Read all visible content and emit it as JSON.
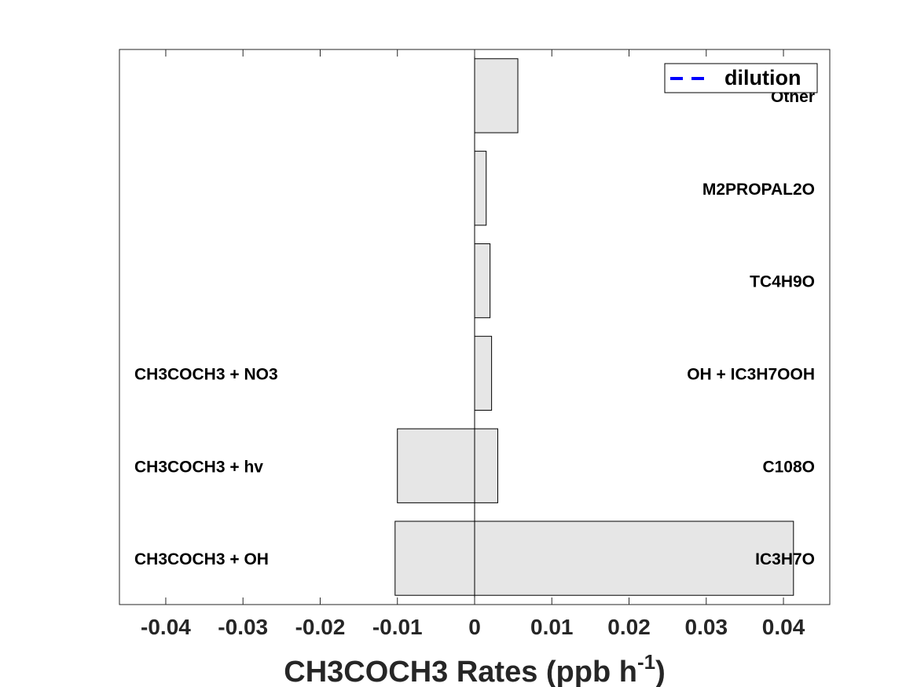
{
  "chart_data": {
    "type": "bar",
    "orientation": "horizontal",
    "xlabel_main": "CH3COCH3 Rates (ppb h",
    "xlabel_sup": "-1",
    "xlabel_close": ")",
    "xlim": [
      -0.046,
      0.046
    ],
    "xticks": [
      -0.04,
      -0.03,
      -0.02,
      -0.01,
      0,
      0.01,
      0.02,
      0.03,
      0.04
    ],
    "xtick_labels": [
      "-0.04",
      "-0.03",
      "-0.02",
      "-0.01",
      "0",
      "0.01",
      "0.02",
      "0.03",
      "0.04"
    ],
    "rows": [
      {
        "production_label": "Other",
        "production": 0.0056,
        "loss_label": "",
        "loss": 0
      },
      {
        "production_label": "M2PROPAL2O",
        "production": 0.0015,
        "loss_label": "",
        "loss": 0
      },
      {
        "production_label": "TC4H9O",
        "production": 0.002,
        "loss_label": "",
        "loss": 0
      },
      {
        "production_label": "OH + IC3H7OOH",
        "production": 0.0022,
        "loss_label": "CH3COCH3 + NO3",
        "loss": 0
      },
      {
        "production_label": "C108O",
        "production": 0.003,
        "loss_label": "CH3COCH3 + hv",
        "loss": -0.01
      },
      {
        "production_label": "IC3H7O",
        "production": 0.0413,
        "loss_label": "CH3COCH3 + OH",
        "loss": -0.0103
      }
    ],
    "legend": {
      "entries": [
        {
          "label": "dilution",
          "style": "dashed",
          "color": "#0000ff"
        }
      ],
      "location": "top-right"
    },
    "bar_color": "#e6e6e6",
    "grid": false
  }
}
